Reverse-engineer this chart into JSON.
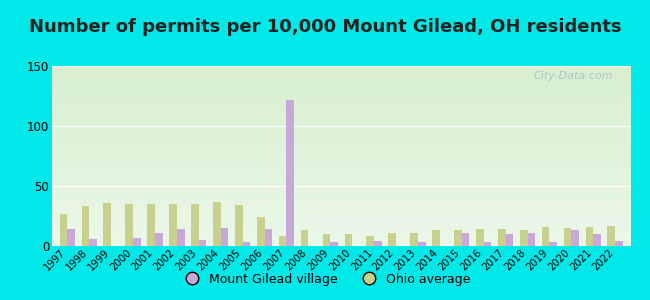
{
  "title": "Number of permits per 10,000 Mount Gilead, OH residents",
  "years": [
    1997,
    1998,
    1999,
    2000,
    2001,
    2002,
    2003,
    2004,
    2005,
    2006,
    2007,
    2008,
    2009,
    2010,
    2011,
    2012,
    2013,
    2014,
    2015,
    2016,
    2017,
    2018,
    2019,
    2020,
    2021,
    2022
  ],
  "mount_gilead": [
    14,
    6,
    0,
    7,
    11,
    14,
    5,
    15,
    3,
    14,
    122,
    0,
    3,
    0,
    4,
    0,
    3,
    0,
    11,
    3,
    10,
    11,
    3,
    13,
    10,
    4
  ],
  "ohio_avg": [
    27,
    33,
    36,
    35,
    35,
    35,
    35,
    37,
    34,
    24,
    8,
    13,
    10,
    10,
    8,
    11,
    11,
    13,
    13,
    14,
    14,
    13,
    16,
    15,
    16,
    17
  ],
  "bar_color_mg": "#c8a8d8",
  "bar_color_oh": "#c8d090",
  "outer_bg": "#00e8e8",
  "plot_bg_top": "#d8efcf",
  "plot_bg_bottom": "#eaf8e8",
  "ylim": [
    0,
    150
  ],
  "yticks": [
    0,
    50,
    100,
    150
  ],
  "legend_mg": "Mount Gilead village",
  "legend_oh": "Ohio average",
  "watermark": "City-Data.com",
  "title_fontsize": 13,
  "title_color": "#222222"
}
